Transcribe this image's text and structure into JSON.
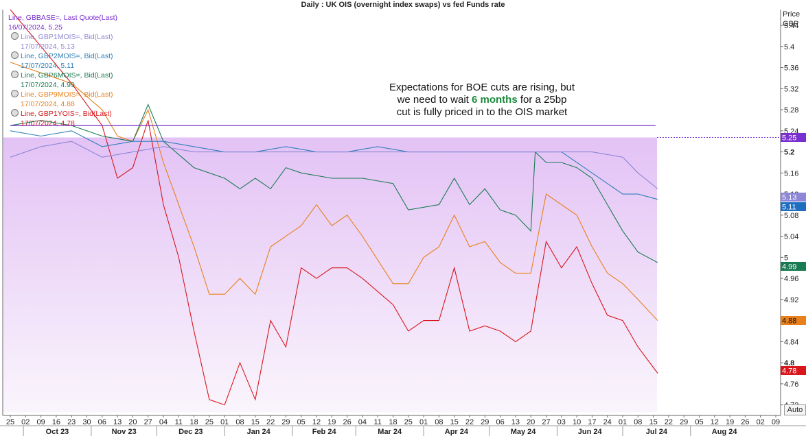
{
  "chart_data": {
    "type": "line",
    "title": "Daily : UK OIS (overnight index swaps) vs fed Funds rate",
    "y_axis_title": [
      "Price",
      "GBP"
    ],
    "ylim": [
      4.7,
      5.47
    ],
    "y_ticks": [
      "5.44",
      "5.4",
      "5.36",
      "5.32",
      "5.28",
      "5.24",
      "5.2",
      "5.16",
      "5.12",
      "5.08",
      "5.04",
      "5",
      "4.96",
      "4.92",
      "4.88",
      "4.84",
      "4.8",
      "4.76",
      "4.72"
    ],
    "y_ticks_bold": [
      "5.2",
      "4.8"
    ],
    "x_day_ticks": [
      "25",
      "02",
      "09",
      "16",
      "23",
      "30",
      "06",
      "13",
      "20",
      "27",
      "04",
      "11",
      "18",
      "25",
      "01",
      "08",
      "15",
      "22",
      "29",
      "05",
      "12",
      "19",
      "26",
      "04",
      "11",
      "18",
      "25",
      "01",
      "08",
      "15",
      "22",
      "29",
      "06",
      "13",
      "20",
      "27",
      "03",
      "10",
      "17",
      "24",
      "01",
      "08",
      "15",
      "22",
      "29",
      "05",
      "12",
      "19",
      "26",
      "02",
      "09"
    ],
    "x_month_labels": [
      "Oct 23",
      "Nov 23",
      "Dec 23",
      "Jan 24",
      "Feb 24",
      "Mar 24",
      "Apr 24",
      "May 24",
      "Jun 24",
      "Jul 24",
      "Aug 24"
    ],
    "series": [
      {
        "name": "GBBASE=",
        "color": "#7a2fcf",
        "last": "5.25",
        "x": [
          "Sep 25",
          "Jul 16"
        ],
        "values": [
          5.25,
          5.25
        ]
      },
      {
        "name": "GBP1MOIS=",
        "color": "#8d87d6",
        "last": "5.13",
        "x": [
          "Sep 25",
          "Oct 09",
          "Oct 23",
          "Nov 06",
          "Nov 20",
          "Dec 04",
          "Dec 18",
          "Jan 01",
          "Jan 15",
          "Jan 29",
          "Feb 12",
          "Feb 26",
          "Mar 11",
          "Mar 25",
          "Apr 08",
          "Apr 22",
          "May 06",
          "May 20",
          "Jun 03",
          "Jun 17",
          "Jul 01",
          "Jul 08",
          "Jul 17"
        ],
        "values": [
          5.19,
          5.21,
          5.22,
          5.19,
          5.2,
          5.21,
          5.2,
          5.2,
          5.2,
          5.2,
          5.2,
          5.2,
          5.2,
          5.2,
          5.2,
          5.2,
          5.2,
          5.2,
          5.2,
          5.2,
          5.19,
          5.16,
          5.13
        ]
      },
      {
        "name": "GBP2MOIS=",
        "color": "#2f7fb8",
        "last": "5.11",
        "x": [
          "Sep 25",
          "Oct 09",
          "Oct 23",
          "Nov 06",
          "Nov 20",
          "Dec 04",
          "Dec 18",
          "Jan 01",
          "Jan 15",
          "Jan 29",
          "Feb 12",
          "Feb 26",
          "Mar 11",
          "Mar 25",
          "Apr 08",
          "Apr 22",
          "May 06",
          "May 20",
          "Jun 03",
          "Jun 17",
          "Jul 01",
          "Jul 08",
          "Jul 17"
        ],
        "values": [
          5.24,
          5.23,
          5.24,
          5.21,
          5.22,
          5.22,
          5.21,
          5.2,
          5.2,
          5.21,
          5.2,
          5.2,
          5.21,
          5.2,
          5.2,
          5.2,
          5.2,
          5.2,
          5.2,
          5.16,
          5.12,
          5.12,
          5.11
        ]
      },
      {
        "name": "GBP6MOIS=",
        "color": "#1a7a52",
        "last": "4.99",
        "x": [
          "Sep 25",
          "Oct 09",
          "Oct 23",
          "Nov 06",
          "Nov 20",
          "Nov 27",
          "Dec 04",
          "Dec 18",
          "Jan 01",
          "Jan 08",
          "Jan 15",
          "Jan 22",
          "Jan 29",
          "Feb 05",
          "Feb 19",
          "Mar 04",
          "Mar 18",
          "Mar 25",
          "Apr 08",
          "Apr 15",
          "Apr 22",
          "Apr 29",
          "May 06",
          "May 13",
          "May 20",
          "May 22",
          "May 27",
          "Jun 03",
          "Jun 10",
          "Jun 17",
          "Jun 24",
          "Jul 01",
          "Jul 08",
          "Jul 17"
        ],
        "values": [
          5.25,
          5.26,
          5.25,
          5.23,
          5.22,
          5.29,
          5.22,
          5.17,
          5.15,
          5.13,
          5.15,
          5.13,
          5.17,
          5.16,
          5.15,
          5.15,
          5.14,
          5.09,
          5.1,
          5.15,
          5.1,
          5.13,
          5.09,
          5.08,
          5.05,
          5.2,
          5.18,
          5.18,
          5.17,
          5.15,
          5.1,
          5.05,
          5.01,
          4.99
        ]
      },
      {
        "name": "GBP9MOIS=",
        "color": "#e8801c",
        "last": "4.88",
        "x": [
          "Sep 25",
          "Oct 09",
          "Oct 23",
          "Nov 06",
          "Nov 13",
          "Nov 20",
          "Nov 27",
          "Dec 04",
          "Dec 11",
          "Dec 18",
          "Dec 25",
          "Jan 01",
          "Jan 08",
          "Jan 15",
          "Jan 22",
          "Jan 29",
          "Feb 05",
          "Feb 12",
          "Feb 19",
          "Feb 26",
          "Mar 04",
          "Mar 18",
          "Mar 25",
          "Apr 01",
          "Apr 08",
          "Apr 15",
          "Apr 22",
          "Apr 29",
          "May 06",
          "May 13",
          "May 20",
          "May 27",
          "Jun 03",
          "Jun 10",
          "Jun 17",
          "Jun 24",
          "Jul 01",
          "Jul 08",
          "Jul 17"
        ],
        "values": [
          5.37,
          5.35,
          5.33,
          5.28,
          5.23,
          5.22,
          5.28,
          5.18,
          5.1,
          5.02,
          4.93,
          4.93,
          4.96,
          4.93,
          5.02,
          5.04,
          5.06,
          5.1,
          5.06,
          5.08,
          5.04,
          4.95,
          4.95,
          5.0,
          5.02,
          5.08,
          5.02,
          5.03,
          4.99,
          4.97,
          4.97,
          5.12,
          5.1,
          5.08,
          5.02,
          4.97,
          4.95,
          4.92,
          4.88
        ]
      },
      {
        "name": "GBP1YOIS=",
        "color": "#d8161b",
        "last": "4.78",
        "x": [
          "Sep 25",
          "Oct 09",
          "Oct 23",
          "Nov 06",
          "Nov 13",
          "Nov 20",
          "Nov 27",
          "Dec 04",
          "Dec 11",
          "Dec 18",
          "Dec 25",
          "Jan 01",
          "Jan 08",
          "Jan 15",
          "Jan 22",
          "Jan 29",
          "Feb 05",
          "Feb 12",
          "Feb 19",
          "Feb 26",
          "Mar 04",
          "Mar 18",
          "Mar 25",
          "Apr 01",
          "Apr 08",
          "Apr 15",
          "Apr 22",
          "Apr 29",
          "May 06",
          "May 13",
          "May 20",
          "May 27",
          "Jun 03",
          "Jun 10",
          "Jun 17",
          "Jun 24",
          "Jul 01",
          "Jul 08",
          "Jul 17"
        ],
        "values": [
          5.47,
          5.4,
          5.33,
          5.25,
          5.15,
          5.17,
          5.26,
          5.1,
          5.0,
          4.86,
          4.73,
          4.72,
          4.8,
          4.73,
          4.88,
          4.83,
          4.98,
          4.96,
          4.98,
          4.98,
          4.96,
          4.91,
          4.86,
          4.88,
          4.88,
          4.98,
          4.86,
          4.87,
          4.86,
          4.84,
          4.86,
          5.03,
          4.98,
          5.02,
          4.95,
          4.89,
          4.88,
          4.83,
          4.78
        ]
      }
    ],
    "price_tags": [
      "5.25",
      "5.13",
      "5.11",
      "4.99",
      "4.88",
      "4.78"
    ],
    "annotation": {
      "line1": "Expectations for BOE cuts are rising, but",
      "line2_pre": "we need to wait ",
      "line2_hl": "6 months",
      "line2_post": " for a 25bp",
      "line3": "cut is fully priced in to the OIS market"
    },
    "grid": false,
    "legend_position": "top-left"
  },
  "legend": [
    {
      "line1": "Line, GBBASE=, Last Quote(Last)",
      "line2": "16/07/2024, 5.25",
      "color": "#7a2fcf"
    },
    {
      "line1": "Line, GBP1MOIS=, Bid(Last)",
      "line2": "17/07/2024, 5.13",
      "color": "#8d87d6"
    },
    {
      "line1": "Line, GBP2MOIS=, Bid(Last)",
      "line2": "17/07/2024, 5.11",
      "color": "#2f7fb8"
    },
    {
      "line1": "Line, GBP6MOIS=, Bid(Last)",
      "line2": "17/07/2024, 4.99",
      "color": "#1a7a52"
    },
    {
      "line1": "Line, GBP9MOIS=, Bid(Last)",
      "line2": "17/07/2024, 4.88",
      "color": "#e8801c"
    },
    {
      "line1": "Line, GBP1YOIS=, Bid(Last)",
      "line2": "17/07/2024, 4.78",
      "color": "#d8161b"
    }
  ],
  "auto_label": "Auto"
}
